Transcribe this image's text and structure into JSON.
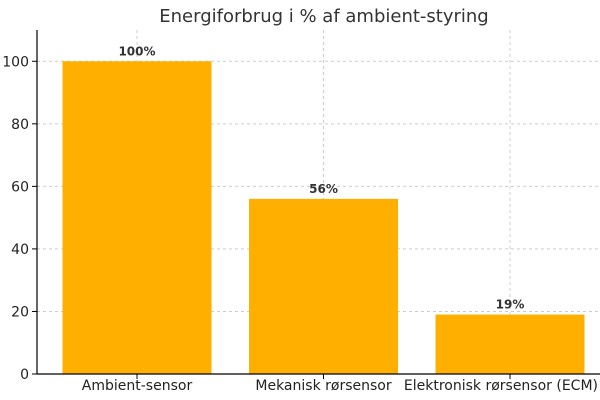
{
  "chart_data": {
    "type": "bar",
    "title": "Energiforbrug i % af ambient-styring",
    "categories": [
      "Ambient-sensor",
      "Mekanisk rørsensor",
      "Elektronisk rørsensor (ECM)"
    ],
    "values": [
      100,
      56,
      19
    ],
    "data_labels": [
      "100%",
      "56%",
      "19%"
    ],
    "ylim": [
      0,
      110
    ],
    "yticks": [
      0,
      20,
      40,
      60,
      80,
      100
    ],
    "bar_color": "#ffaf00",
    "grid": true
  }
}
